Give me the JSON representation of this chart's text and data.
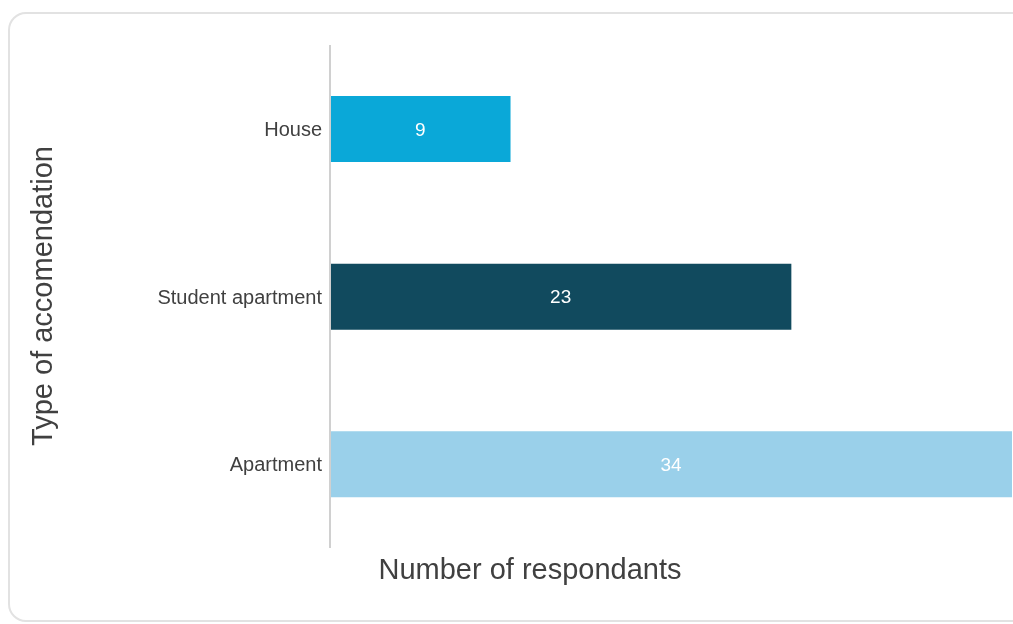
{
  "chart_data": {
    "type": "bar",
    "orientation": "horizontal",
    "xlabel": "Number of respondants",
    "ylabel": "Type of accomendation",
    "categories": [
      "House",
      "Student apartment",
      "Apartment"
    ],
    "values": [
      9,
      23,
      34
    ],
    "colors": [
      "#0aa8d8",
      "#114a5e",
      "#9ad0ea"
    ],
    "data_labels": true,
    "tick_labels": "y",
    "grid": false,
    "legend": false
  }
}
